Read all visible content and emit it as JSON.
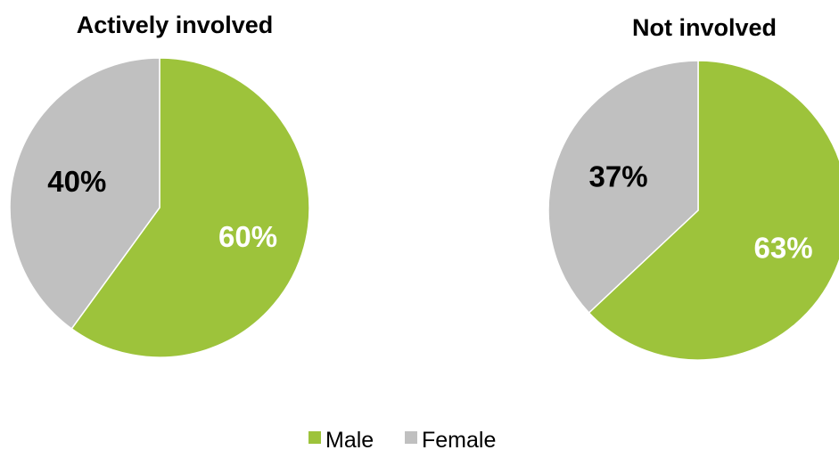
{
  "chart_data": [
    {
      "type": "pie",
      "title": "Actively involved",
      "categories": [
        "Male",
        "Female"
      ],
      "values": [
        60,
        40
      ],
      "labels": [
        "60%",
        "40%"
      ],
      "colors": [
        "#9dc33b",
        "#c0c0c0"
      ],
      "label_colors": [
        "#ffffff",
        "#000000"
      ],
      "start_angle": "12 o'clock",
      "direction": "clockwise"
    },
    {
      "type": "pie",
      "title": "Not involved",
      "categories": [
        "Male",
        "Female"
      ],
      "values": [
        63,
        37
      ],
      "labels": [
        "63%",
        "37%"
      ],
      "colors": [
        "#9dc33b",
        "#c0c0c0"
      ],
      "label_colors": [
        "#ffffff",
        "#000000"
      ],
      "start_angle": "12 o'clock",
      "direction": "clockwise"
    }
  ],
  "legend": {
    "placement": "bottom",
    "items": [
      {
        "name": "Male",
        "color": "#9dc33b"
      },
      {
        "name": "Female",
        "color": "#c0c0c0"
      }
    ]
  }
}
